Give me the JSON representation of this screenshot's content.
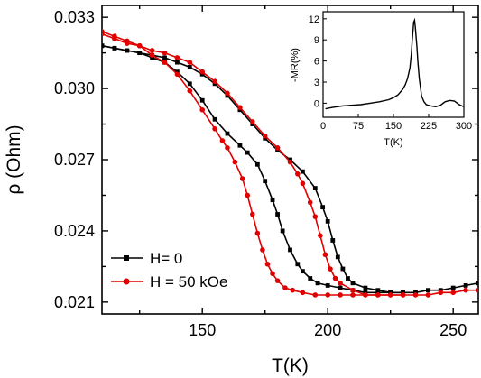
{
  "chart_data": [
    {
      "type": "line",
      "xlabel": "T(K)",
      "ylabel": "ρ (Ohm)",
      "xlim": [
        110,
        260
      ],
      "ylim": [
        0.0205,
        0.0335
      ],
      "xticks": [
        150,
        200,
        250
      ],
      "xtick_labels": [
        "150",
        "200",
        "250"
      ],
      "yticks": [
        0.021,
        0.024,
        0.027,
        0.03,
        0.033
      ],
      "ytick_labels": [
        "0.021",
        "0.024",
        "0.027",
        "0.030",
        "0.033"
      ],
      "grid": false,
      "legend": "bottom-left",
      "series": [
        {
          "name": "H= 0",
          "color": "#000000",
          "marker": "square",
          "branch_a": {
            "x": [
              110,
              115,
              120,
              125,
              130,
              135,
              140,
              145,
              150,
              155,
              160,
              165,
              170,
              175,
              180,
              185,
              190,
              195,
              198,
              200,
              202,
              204,
              206,
              208,
              210,
              215,
              220,
              225,
              230,
              235,
              240,
              245,
              250,
              255,
              260
            ],
            "y": [
              0.0318,
              0.0317,
              0.0316,
              0.0315,
              0.0314,
              0.0313,
              0.0311,
              0.0309,
              0.0306,
              0.0302,
              0.0297,
              0.0291,
              0.0285,
              0.0279,
              0.0274,
              0.027,
              0.0265,
              0.0258,
              0.025,
              0.0244,
              0.0236,
              0.0229,
              0.0224,
              0.022,
              0.0218,
              0.0216,
              0.0215,
              0.0214,
              0.0214,
              0.0214,
              0.0215,
              0.0215,
              0.0216,
              0.0217,
              0.0218
            ]
          },
          "branch_b": {
            "x": [
              110,
              115,
              120,
              125,
              130,
              135,
              140,
              145,
              150,
              155,
              160,
              165,
              168,
              172,
              175,
              178,
              180,
              182,
              185,
              188,
              190,
              193,
              196,
              200,
              205,
              210,
              215,
              220,
              225,
              230
            ],
            "y": [
              0.0318,
              0.0317,
              0.0316,
              0.0315,
              0.0313,
              0.0311,
              0.0307,
              0.0302,
              0.0295,
              0.0287,
              0.0281,
              0.0276,
              0.0273,
              0.0268,
              0.0261,
              0.0253,
              0.0247,
              0.024,
              0.0232,
              0.0226,
              0.0223,
              0.022,
              0.0218,
              0.0217,
              0.0216,
              0.0215,
              0.0214,
              0.0214,
              0.0214,
              0.0214
            ]
          }
        },
        {
          "name": "H = 50 kOe",
          "color": "#e00000",
          "marker": "circle",
          "branch_a": {
            "x": [
              110,
              115,
              120,
              125,
              130,
              135,
              140,
              145,
              150,
              155,
              160,
              165,
              170,
              175,
              180,
              185,
              188,
              190,
              193,
              195,
              197,
              199,
              201,
              203,
              205,
              210,
              215,
              220,
              225,
              230,
              235,
              240,
              245,
              250,
              255,
              260
            ],
            "y": [
              0.0323,
              0.0321,
              0.0319,
              0.0318,
              0.0316,
              0.0315,
              0.0313,
              0.0311,
              0.0307,
              0.0303,
              0.0298,
              0.0292,
              0.0286,
              0.028,
              0.0275,
              0.0269,
              0.0264,
              0.026,
              0.0252,
              0.0246,
              0.0238,
              0.023,
              0.0224,
              0.022,
              0.0218,
              0.0215,
              0.0213,
              0.0213,
              0.0213,
              0.0213,
              0.0213,
              0.0213,
              0.0214,
              0.0214,
              0.0215,
              0.0215
            ]
          },
          "branch_b": {
            "x": [
              110,
              115,
              120,
              125,
              130,
              135,
              140,
              145,
              150,
              155,
              158,
              160,
              163,
              166,
              168,
              170,
              172,
              174,
              176,
              178,
              180,
              183,
              186,
              190,
              195,
              200,
              205,
              210,
              215,
              220,
              225,
              230
            ],
            "y": [
              0.0324,
              0.0322,
              0.032,
              0.0318,
              0.0314,
              0.0311,
              0.0306,
              0.0299,
              0.0291,
              0.0283,
              0.0278,
              0.0275,
              0.0269,
              0.0262,
              0.0255,
              0.0247,
              0.0239,
              0.0232,
              0.0226,
              0.0222,
              0.0219,
              0.0216,
              0.0215,
              0.0214,
              0.0213,
              0.0213,
              0.0213,
              0.0213,
              0.0213,
              0.0213,
              0.0213,
              0.0213
            ]
          }
        }
      ]
    },
    {
      "type": "line",
      "xlabel": "T(K)",
      "ylabel": "-MR(%)",
      "xlim": [
        0,
        300
      ],
      "ylim": [
        -2,
        13
      ],
      "xticks": [
        0,
        75,
        150,
        225,
        300
      ],
      "xtick_labels": [
        "0",
        "75",
        "150",
        "225",
        "300"
      ],
      "yticks": [
        0,
        3,
        6,
        9,
        12
      ],
      "ytick_labels": [
        "0",
        "3",
        "6",
        "9",
        "12"
      ],
      "grid": false,
      "legend": "none",
      "series": [
        {
          "color": "#000000",
          "x": [
            5,
            20,
            40,
            60,
            80,
            100,
            120,
            140,
            150,
            160,
            170,
            175,
            180,
            185,
            188,
            190,
            193,
            195,
            197,
            200,
            202,
            205,
            210,
            215,
            220,
            230,
            240,
            250,
            260,
            270,
            280,
            290,
            300
          ],
          "y": [
            -0.8,
            -0.6,
            -0.4,
            -0.3,
            -0.2,
            0.0,
            0.2,
            0.5,
            0.8,
            1.2,
            2.0,
            2.6,
            3.5,
            5.0,
            7.0,
            9.0,
            11.5,
            11.8,
            10.5,
            8.0,
            6.0,
            3.5,
            1.0,
            0.2,
            -0.2,
            -0.4,
            -0.5,
            -0.3,
            0.2,
            0.4,
            0.3,
            -0.2,
            -0.5
          ]
        }
      ]
    }
  ],
  "legend": {
    "entries": [
      {
        "label": "H= 0",
        "color": "#000000",
        "marker": "square"
      },
      {
        "label": "H = 50 kOe",
        "color": "#e00000",
        "marker": "circle"
      }
    ]
  }
}
